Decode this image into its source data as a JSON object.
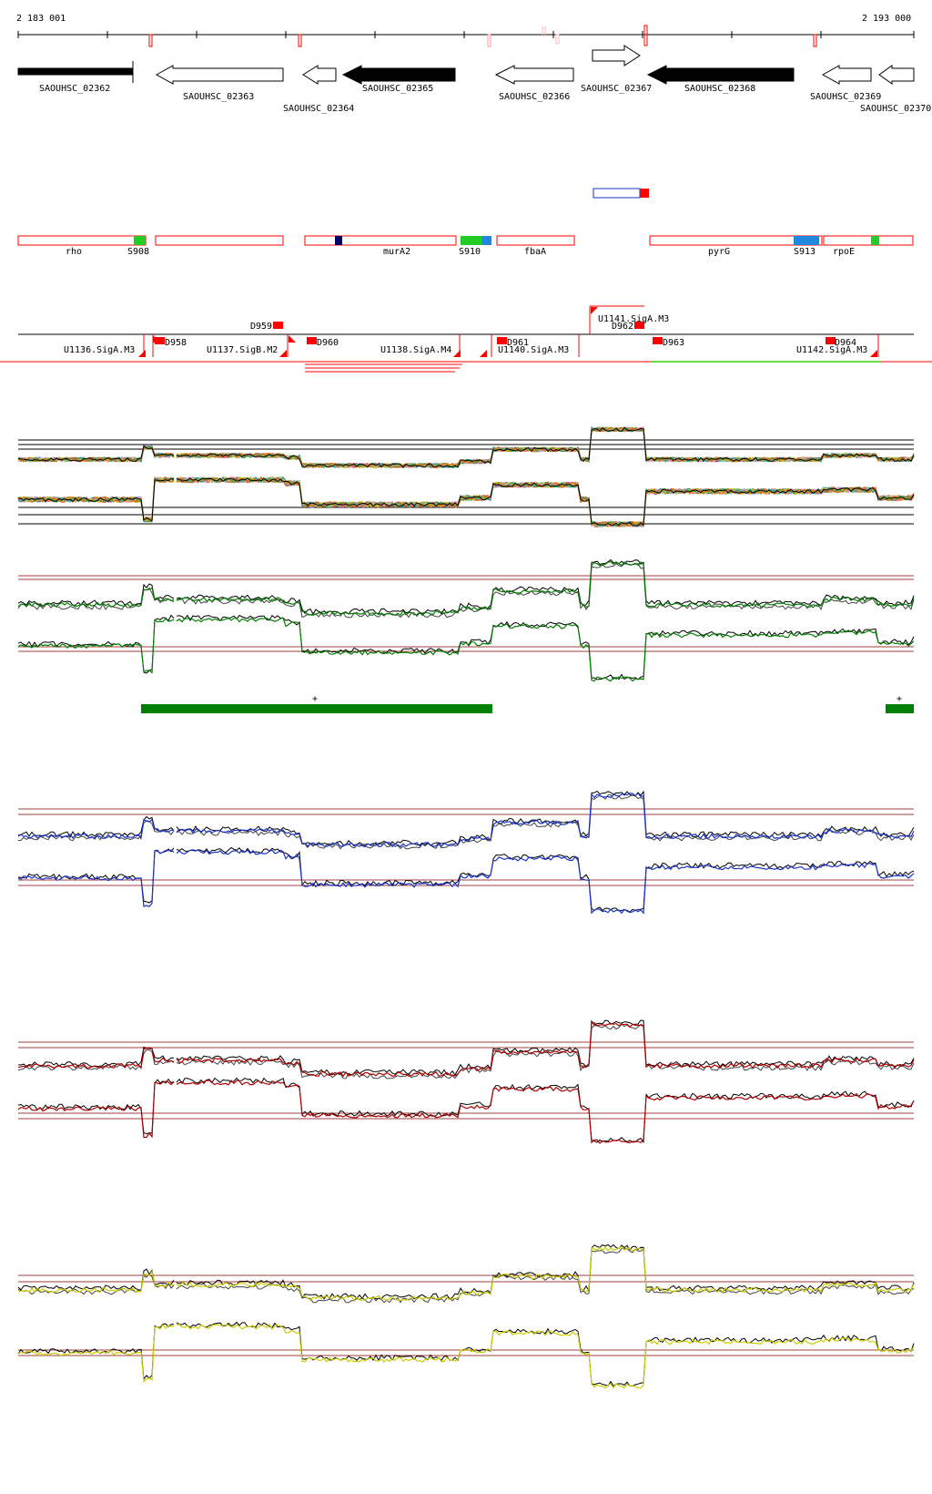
{
  "coordinates": {
    "start": "2 183 001",
    "end": "2 193 000"
  },
  "colors": {
    "forward_gene_fill": "#000000",
    "reverse_gene_fill": "#ffffff",
    "feature_outline": "#ff0000",
    "track_green": "#008000",
    "track_blue": "#1a33cc",
    "track_red": "#b00000",
    "track_yellow": "#cccc00",
    "threshold_line": "#a04040",
    "accent_green": "#22cc22",
    "accent_blue": "#2288dd",
    "accent_navy": "#000066",
    "accent_red": "#ff0000"
  },
  "genes": [
    {
      "id": "SAOUHSC_02362",
      "direction": "right",
      "filled": true
    },
    {
      "id": "SAOUHSC_02363",
      "direction": "left",
      "filled": false
    },
    {
      "id": "SAOUHSC_02364",
      "direction": "left",
      "filled": false
    },
    {
      "id": "SAOUHSC_02365",
      "direction": "left",
      "filled": true
    },
    {
      "id": "SAOUHSC_02366",
      "direction": "left",
      "filled": false
    },
    {
      "id": "SAOUHSC_02367",
      "direction": "right",
      "filled": false
    },
    {
      "id": "SAOUHSC_02368",
      "direction": "left",
      "filled": true
    },
    {
      "id": "SAOUHSC_02369",
      "direction": "left",
      "filled": false
    },
    {
      "id": "SAOUHSC_02370",
      "direction": "left",
      "filled": false
    }
  ],
  "annotations": [
    {
      "label": "rho"
    },
    {
      "label": "S908"
    },
    {
      "label": "murA2"
    },
    {
      "label": "S910"
    },
    {
      "label": "fbaA"
    },
    {
      "label": "pyrG"
    },
    {
      "label": "S913"
    },
    {
      "label": "rpoE"
    }
  ],
  "units": [
    {
      "label": "U1136.SigA.M3"
    },
    {
      "label": "U1137.SigB.M2"
    },
    {
      "label": "U1138.SigA.M4"
    },
    {
      "label": "U1140.SigA.M3"
    },
    {
      "label": "U1141.SigA.M3"
    },
    {
      "label": "U1142.SigA.M3"
    }
  ],
  "domains": [
    {
      "label": "D958"
    },
    {
      "label": "D959"
    },
    {
      "label": "D960"
    },
    {
      "label": "D961"
    },
    {
      "label": "D962"
    },
    {
      "label": "D963"
    },
    {
      "label": "D964"
    }
  ],
  "segment_markers": [
    {
      "label": "+"
    },
    {
      "label": "+"
    }
  ],
  "expression_tracks": [
    {
      "name": "all-conditions",
      "color": "multi"
    },
    {
      "name": "green-condition",
      "color": "#008000"
    },
    {
      "name": "blue-condition",
      "color": "#1a33cc"
    },
    {
      "name": "red-condition",
      "color": "#b00000"
    },
    {
      "name": "yellow-condition",
      "color": "#cccc00"
    }
  ]
}
